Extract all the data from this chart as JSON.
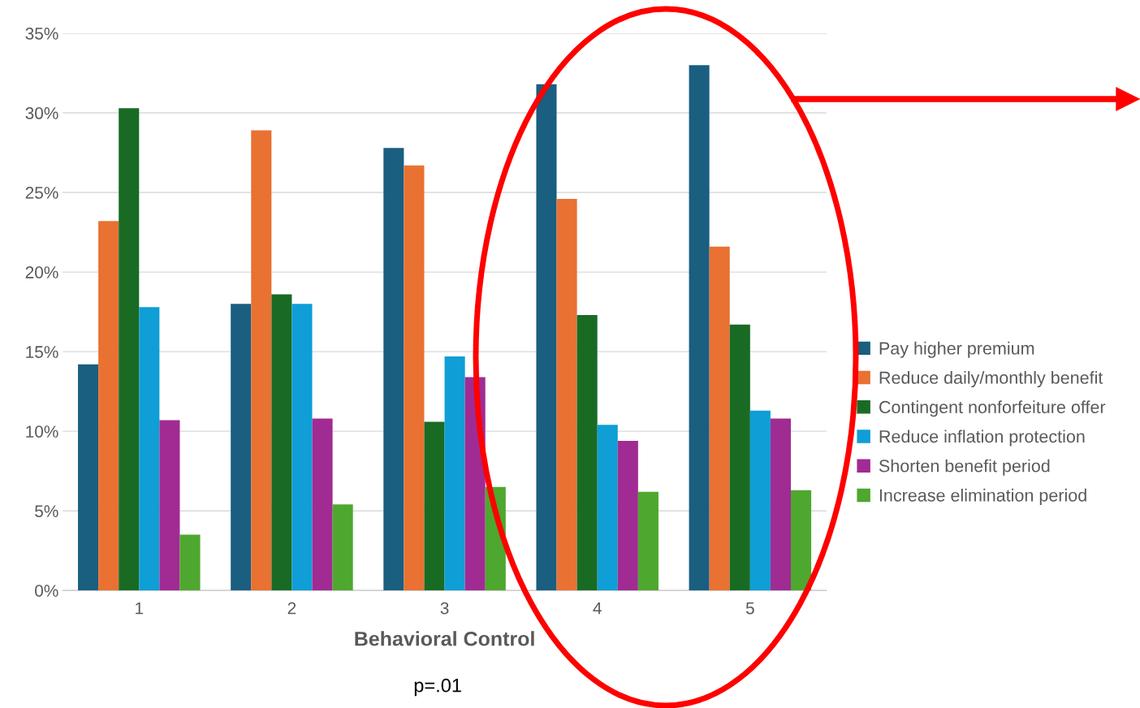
{
  "chart_data": {
    "type": "bar",
    "xlabel": "Behavioral Control",
    "categories": [
      "1",
      "2",
      "3",
      "4",
      "5"
    ],
    "series": [
      {
        "name": "Pay higher premium",
        "color": "#1a5e80",
        "values": [
          14.2,
          18.0,
          27.8,
          31.8,
          33.0
        ]
      },
      {
        "name": "Reduce daily/monthly benefit",
        "color": "#e97132",
        "values": [
          23.2,
          28.9,
          26.7,
          24.6,
          21.6
        ]
      },
      {
        "name": "Contingent nonforfeiture offer",
        "color": "#196b24",
        "values": [
          30.3,
          18.6,
          10.6,
          17.3,
          16.7
        ]
      },
      {
        "name": "Reduce inflation protection",
        "color": "#0f9ed5",
        "values": [
          17.8,
          18.0,
          14.7,
          10.4,
          11.3
        ]
      },
      {
        "name": "Shorten benefit period",
        "color": "#a02b93",
        "values": [
          10.7,
          10.8,
          13.4,
          9.4,
          10.8
        ]
      },
      {
        "name": "Increase elimination period",
        "color": "#4ea72e",
        "values": [
          3.5,
          5.4,
          6.5,
          6.2,
          6.3
        ]
      }
    ],
    "ylim": [
      0,
      35
    ],
    "yticks": [
      {
        "value": 0,
        "label": "0%"
      },
      {
        "value": 5,
        "label": "5%"
      },
      {
        "value": 10,
        "label": "10%"
      },
      {
        "value": 15,
        "label": "15%"
      },
      {
        "value": 20,
        "label": "20%"
      },
      {
        "value": 25,
        "label": "25%"
      },
      {
        "value": 30,
        "label": "30%"
      },
      {
        "value": 35,
        "label": "35%"
      }
    ],
    "grid": "y",
    "legend": "right",
    "annotations": [
      "p=.01"
    ]
  }
}
